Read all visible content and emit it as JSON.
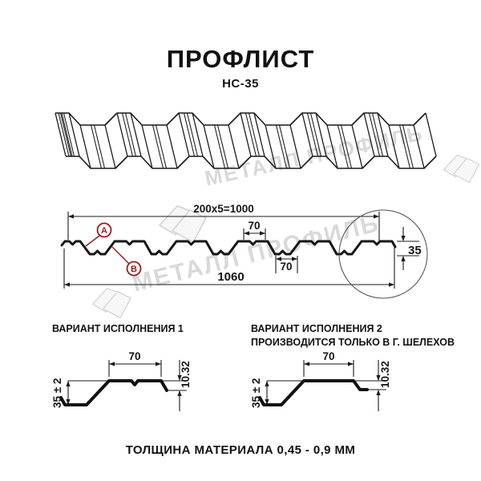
{
  "header": {
    "title": "ПРОФЛИСТ",
    "model": "НС-35"
  },
  "watermark": {
    "brand": "МЕТАЛЛ ПРОФИЛЬ"
  },
  "cross_section": {
    "dim_cover_width": "200x5=1000",
    "dim_rib_top": "70",
    "dim_rib_bottom": "70",
    "dim_overall_width": "1060",
    "dim_height": "35",
    "label_a": "А",
    "label_b": "В"
  },
  "variant1": {
    "title": "ВАРИАНТ ИСПОЛНЕНИЯ 1",
    "dim_top": "70",
    "dim_edge": "10.32",
    "dim_height": "35 ± 2"
  },
  "variant2": {
    "title_line1": "ВАРИАНТ ИСПОЛНЕНИЯ 2",
    "title_line2": "ПРОИЗВОДИТСЯ ТОЛЬКО В Г. ШЕЛЕХОВ",
    "dim_top": "70",
    "dim_edge": "10.32",
    "dim_height": "35 ± 2"
  },
  "footer": {
    "thickness_note": "ТОЛЩИНА МАТЕРИАЛА 0,45 - 0,9 ММ"
  },
  "colors": {
    "line": "#1a1a1a",
    "accent_red": "#9e1b1b",
    "watermark": "#d9d9d9"
  }
}
